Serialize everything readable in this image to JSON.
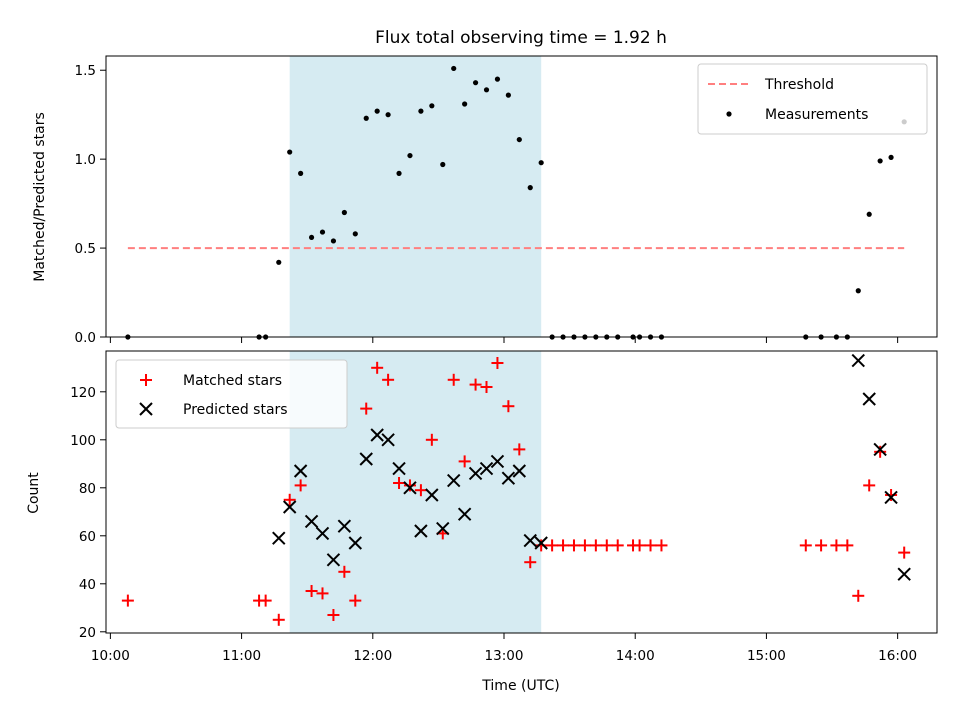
{
  "title": "Flux total observing time = 1.92 h",
  "xlabel": "Time (UTC)",
  "x_ticks": [
    "10:00",
    "11:00",
    "12:00",
    "13:00",
    "14:00",
    "15:00",
    "16:00"
  ],
  "colors": {
    "shade": "#add8e6",
    "threshold": "#ff7f7f",
    "measurement": "#000000",
    "matched": "#ff0000",
    "predicted": "#000000"
  },
  "chart_data": [
    {
      "type": "scatter",
      "ylabel": "Matched/Predicted stars",
      "xlim": [
        "09:58",
        "16:18"
      ],
      "ylim": [
        0,
        1.58
      ],
      "y_ticks": [
        "0.0",
        "0.5",
        "1.0",
        "1.5"
      ],
      "legend": {
        "placement": "top-right",
        "entries": [
          "Threshold",
          "Measurements"
        ]
      },
      "shaded_interval": [
        "11:22",
        "13:17"
      ],
      "threshold": {
        "name": "Threshold",
        "y": 0.5,
        "x_range": [
          "10:08",
          "16:03"
        ]
      },
      "series": [
        {
          "name": "Measurements",
          "points": [
            [
              "10:08",
              0.0
            ],
            [
              "11:08",
              0.0
            ],
            [
              "11:11",
              0.0
            ],
            [
              "11:17",
              0.42
            ],
            [
              "11:22",
              1.04
            ],
            [
              "11:27",
              0.92
            ],
            [
              "11:32",
              0.56
            ],
            [
              "11:37",
              0.59
            ],
            [
              "11:42",
              0.54
            ],
            [
              "11:47",
              0.7
            ],
            [
              "11:52",
              0.58
            ],
            [
              "11:57",
              1.23
            ],
            [
              "12:02",
              1.27
            ],
            [
              "12:07",
              1.25
            ],
            [
              "12:12",
              0.92
            ],
            [
              "12:17",
              1.02
            ],
            [
              "12:22",
              1.27
            ],
            [
              "12:27",
              1.3
            ],
            [
              "12:32",
              0.97
            ],
            [
              "12:37",
              1.51
            ],
            [
              "12:42",
              1.31
            ],
            [
              "12:47",
              1.43
            ],
            [
              "12:52",
              1.39
            ],
            [
              "12:57",
              1.45
            ],
            [
              "13:02",
              1.36
            ],
            [
              "13:07",
              1.11
            ],
            [
              "13:12",
              0.84
            ],
            [
              "13:17",
              0.98
            ],
            [
              "13:22",
              0.0
            ],
            [
              "13:27",
              0.0
            ],
            [
              "13:32",
              0.0
            ],
            [
              "13:37",
              0.0
            ],
            [
              "13:42",
              0.0
            ],
            [
              "13:47",
              0.0
            ],
            [
              "13:52",
              0.0
            ],
            [
              "13:59",
              0.0
            ],
            [
              "14:02",
              0.0
            ],
            [
              "14:07",
              0.0
            ],
            [
              "14:12",
              0.0
            ],
            [
              "15:18",
              0.0
            ],
            [
              "15:25",
              0.0
            ],
            [
              "15:32",
              0.0
            ],
            [
              "15:37",
              0.0
            ],
            [
              "15:42",
              0.26
            ],
            [
              "15:47",
              0.69
            ],
            [
              "15:52",
              0.99
            ],
            [
              "15:57",
              1.01
            ],
            [
              "16:03",
              1.21
            ]
          ]
        }
      ]
    },
    {
      "type": "scatter",
      "ylabel": "Count",
      "xlim": [
        "09:58",
        "16:18"
      ],
      "ylim": [
        19.5,
        137
      ],
      "y_ticks": [
        "20",
        "40",
        "60",
        "80",
        "100",
        "120"
      ],
      "legend": {
        "placement": "top-left",
        "entries": [
          "Matched stars",
          "Predicted stars"
        ]
      },
      "shaded_interval": [
        "11:22",
        "13:17"
      ],
      "series": [
        {
          "name": "Matched stars",
          "marker": "plus",
          "points": [
            [
              "10:08",
              33
            ],
            [
              "11:08",
              33
            ],
            [
              "11:11",
              33
            ],
            [
              "11:17",
              25
            ],
            [
              "11:22",
              75
            ],
            [
              "11:27",
              81
            ],
            [
              "11:32",
              37
            ],
            [
              "11:37",
              36
            ],
            [
              "11:42",
              27
            ],
            [
              "11:47",
              45
            ],
            [
              "11:52",
              33
            ],
            [
              "11:57",
              113
            ],
            [
              "12:02",
              130
            ],
            [
              "12:07",
              125
            ],
            [
              "12:12",
              82
            ],
            [
              "12:17",
              81
            ],
            [
              "12:22",
              79
            ],
            [
              "12:27",
              100
            ],
            [
              "12:32",
              61
            ],
            [
              "12:37",
              125
            ],
            [
              "12:42",
              91
            ],
            [
              "12:47",
              123
            ],
            [
              "12:52",
              122
            ],
            [
              "12:57",
              132
            ],
            [
              "13:02",
              114
            ],
            [
              "13:07",
              96
            ],
            [
              "13:12",
              49
            ],
            [
              "13:17",
              56
            ],
            [
              "13:22",
              56
            ],
            [
              "13:27",
              56
            ],
            [
              "13:32",
              56
            ],
            [
              "13:37",
              56
            ],
            [
              "13:42",
              56
            ],
            [
              "13:47",
              56
            ],
            [
              "13:52",
              56
            ],
            [
              "13:59",
              56
            ],
            [
              "14:02",
              56
            ],
            [
              "14:07",
              56
            ],
            [
              "14:12",
              56
            ],
            [
              "15:18",
              56
            ],
            [
              "15:25",
              56
            ],
            [
              "15:32",
              56
            ],
            [
              "15:37",
              56
            ],
            [
              "15:42",
              35
            ],
            [
              "15:47",
              81
            ],
            [
              "15:52",
              95
            ],
            [
              "15:57",
              77
            ],
            [
              "16:03",
              53
            ]
          ]
        },
        {
          "name": "Predicted stars",
          "marker": "x",
          "points": [
            [
              "11:17",
              59
            ],
            [
              "11:22",
              72
            ],
            [
              "11:27",
              87
            ],
            [
              "11:32",
              66
            ],
            [
              "11:37",
              61
            ],
            [
              "11:42",
              50
            ],
            [
              "11:47",
              64
            ],
            [
              "11:52",
              57
            ],
            [
              "11:57",
              92
            ],
            [
              "12:02",
              102
            ],
            [
              "12:07",
              100
            ],
            [
              "12:12",
              88
            ],
            [
              "12:17",
              80
            ],
            [
              "12:22",
              62
            ],
            [
              "12:27",
              77
            ],
            [
              "12:32",
              63
            ],
            [
              "12:37",
              83
            ],
            [
              "12:42",
              69
            ],
            [
              "12:47",
              86
            ],
            [
              "12:52",
              88
            ],
            [
              "12:57",
              91
            ],
            [
              "13:02",
              84
            ],
            [
              "13:07",
              87
            ],
            [
              "13:12",
              58
            ],
            [
              "13:17",
              57
            ],
            [
              "15:42",
              133
            ],
            [
              "15:47",
              117
            ],
            [
              "15:52",
              96
            ],
            [
              "15:57",
              76
            ],
            [
              "16:03",
              44
            ]
          ]
        }
      ]
    }
  ]
}
